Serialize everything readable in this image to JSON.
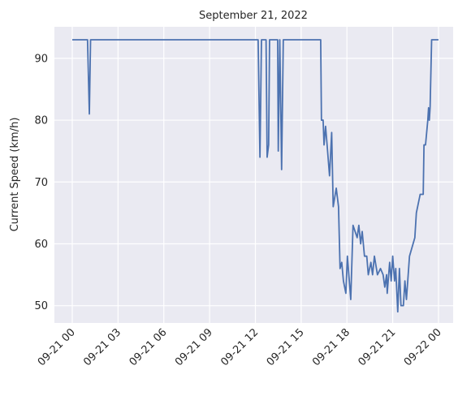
{
  "chart_data": {
    "type": "line",
    "title": "September 21, 2022",
    "ylabel": "Current Speed (km/h)",
    "x": [
      0,
      1.0,
      1.12,
      1.2,
      12.18,
      12.3,
      12.4,
      12.7,
      12.77,
      12.87,
      12.93,
      13.46,
      13.5,
      13.6,
      13.72,
      13.83,
      16.28,
      16.33,
      16.44,
      16.5,
      16.6,
      16.7,
      16.86,
      17.0,
      17.1,
      17.3,
      17.45,
      17.55,
      17.66,
      17.77,
      17.93,
      18.03,
      18.25,
      18.4,
      18.67,
      18.78,
      18.9,
      19.0,
      19.15,
      19.3,
      19.4,
      19.57,
      19.68,
      19.8,
      20.0,
      20.2,
      20.37,
      20.48,
      20.6,
      20.64,
      20.8,
      20.9,
      21.0,
      21.12,
      21.2,
      21.33,
      21.44,
      21.54,
      21.7,
      21.8,
      21.9,
      22.1,
      22.45,
      22.55,
      22.8,
      23.0,
      23.05,
      23.15,
      23.3,
      23.35,
      23.4,
      23.45,
      23.55,
      24.0
    ],
    "series": [
      {
        "name": "Current Speed",
        "color": "#4c72b0",
        "values": [
          93,
          93,
          81,
          93,
          93,
          74,
          93,
          93,
          74,
          76,
          93,
          93,
          75,
          93,
          72,
          93,
          93,
          80,
          80,
          76,
          79,
          76,
          71,
          78,
          66,
          69,
          66,
          56,
          57,
          54,
          52,
          58,
          51,
          63,
          61,
          63,
          60,
          62,
          58,
          58,
          55,
          57,
          55,
          58,
          55,
          56,
          55,
          53,
          55,
          52,
          57,
          54,
          58,
          54,
          56,
          49,
          56,
          50,
          50,
          54,
          51,
          58,
          61,
          65,
          68,
          68,
          76,
          76,
          80,
          82,
          80,
          82,
          93,
          93
        ]
      }
    ],
    "xlim": [
      -1.17,
      24.96
    ],
    "xticks": [
      {
        "value": 0,
        "label": "09-21 00"
      },
      {
        "value": 3,
        "label": "09-21 03"
      },
      {
        "value": 6,
        "label": "09-21 06"
      },
      {
        "value": 9,
        "label": "09-21 09"
      },
      {
        "value": 12,
        "label": "09-21 12"
      },
      {
        "value": 15,
        "label": "09-21 15"
      },
      {
        "value": 18,
        "label": "09-21 18"
      },
      {
        "value": 21,
        "label": "09-21 21"
      },
      {
        "value": 24,
        "label": "09-22 00"
      }
    ],
    "ylim": [
      47.2,
      95.1
    ],
    "yticks": [
      50,
      60,
      70,
      80,
      90
    ],
    "grid": true
  }
}
